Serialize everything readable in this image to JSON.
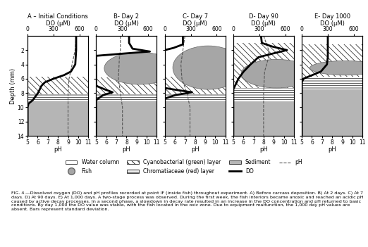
{
  "chart_data": {
    "type": "line",
    "xlabel": "pH",
    "x2label": "DO (µM)",
    "ylabel": "Depth (mm)",
    "xlim": [
      5,
      11
    ],
    "xticks": [
      5,
      6,
      7,
      8,
      9,
      10,
      11
    ],
    "x2lim": [
      0,
      700
    ],
    "x2ticks": [
      0,
      300,
      600
    ],
    "ylim": [
      0,
      14
    ],
    "yticks": [
      2,
      4,
      6,
      8,
      10,
      12,
      14
    ],
    "legend": "upper center",
    "series": [
      {
        "name": "DO",
        "color": "#000000",
        "line_style": "solid",
        "axis": "x2"
      },
      {
        "name": "pH",
        "color": "#555555",
        "line_style": "dashed"
      }
    ],
    "layer_labels": {
      "water": "Water column",
      "fish": "Fish",
      "cyanobacterial": "Cyanobacterial (green) layer",
      "chromatiaceae": "Chromatiaceae (red) layer",
      "sediment": "Sediment"
    },
    "layer_colors": {
      "water": "#ffffff",
      "fish": "#a6a6a6",
      "cyanobacterial": "#ffffff",
      "chromatiaceae": "#ffffff",
      "sediment": "#b5b5b5"
    },
    "panels": [
      {
        "title": "A – Initial Conditions",
        "depth_do": [
          0,
          2,
          4,
          5,
          5.5,
          6,
          6.5,
          7,
          8,
          9,
          9.5,
          10,
          14
        ],
        "do": [
          560,
          560,
          550,
          500,
          420,
          300,
          200,
          160,
          120,
          60,
          10,
          0,
          0
        ],
        "depth_ph": [
          0,
          2,
          4,
          6,
          8,
          10,
          14
        ],
        "ph": [
          9.8,
          9.7,
          9.4,
          9.1,
          9.0,
          9.0,
          9.0
        ],
        "fish": null,
        "cyanobacterial": [
          5.7,
          8.2
        ],
        "chromatiaceae": [
          8.2,
          9.3
        ],
        "sediment": [
          9.3,
          14
        ]
      },
      {
        "title": "B- Day 2",
        "depth_do": [
          0,
          1,
          1.8,
          2.2,
          2.5,
          2.8,
          7,
          7.5,
          7.9,
          8.3,
          9,
          14
        ],
        "do": [
          380,
          380,
          420,
          620,
          300,
          0,
          0,
          100,
          190,
          80,
          0,
          0
        ],
        "depth_ph": [
          0,
          2,
          3,
          6,
          8,
          10,
          14
        ],
        "ph": [
          7.4,
          7.4,
          7.3,
          7.2,
          7.4,
          7.6,
          7.6
        ],
        "fish": [
          2.3,
          6.8
        ],
        "cyanobacterial": [
          5.8,
          8.2
        ],
        "chromatiaceae": [
          8.2,
          9.3
        ],
        "sediment": [
          9.3,
          14
        ]
      },
      {
        "title": "C- Day 7",
        "depth_do": [
          0,
          1.2,
          1.7,
          2.0,
          7.3,
          7.6,
          7.9,
          8.3,
          8.8,
          14
        ],
        "do": [
          210,
          210,
          100,
          0,
          0,
          150,
          315,
          120,
          0,
          0
        ],
        "depth_ph": [
          0,
          2,
          4,
          6,
          8,
          10,
          14
        ],
        "ph": [
          7.0,
          6.8,
          6.6,
          6.7,
          7.2,
          7.5,
          7.5
        ],
        "fish": [
          1.4,
          7.5
        ],
        "cyanobacterial": [
          5.7,
          8.2
        ],
        "chromatiaceae": [
          8.2,
          9.3
        ],
        "sediment": [
          9.3,
          14
        ]
      },
      {
        "title": "D- Day 90",
        "depth_do": [
          0,
          1,
          1.5,
          2,
          2.5,
          3,
          4,
          5,
          6,
          7,
          7.5,
          14
        ],
        "do": [
          320,
          330,
          450,
          620,
          450,
          290,
          200,
          120,
          60,
          20,
          0,
          0
        ],
        "depth_ph": [
          0,
          2,
          3,
          5,
          8,
          14
        ],
        "ph": [
          8.0,
          8.5,
          8.5,
          8.1,
          8.0,
          8.0
        ],
        "fish": [
          3.3,
          7.3
        ],
        "cyanobacterial": [
          1.0,
          7.3
        ],
        "chromatiaceae": [
          7.3,
          9.2
        ],
        "sediment": [
          9.2,
          14
        ]
      },
      {
        "title": "E- Day 1000",
        "depth_do": [
          0,
          3,
          4,
          5,
          5.5,
          6,
          6.5,
          14
        ],
        "do": [
          300,
          300,
          290,
          220,
          120,
          20,
          0,
          0
        ],
        "depth_ph": null,
        "ph": null,
        "fish": [
          3.5,
          5.5
        ],
        "cyanobacterial": [
          1.2,
          5.7
        ],
        "chromatiaceae": [
          5.7,
          7.5
        ],
        "sediment": [
          7.5,
          14
        ]
      }
    ],
    "caption": "FIG. 4.—Dissolved oxygen (DO) and pH profiles recorded at point IF (inside fish) throughout experiment. A) Before carcass deposition. B) At 2 days. C) At 7 days. D) At 90 days. E) At 1,000 days. A two-stage process was observed. During the first week, the fish interiors became anoxic and reached an acidic pH caused by active decay processes. In a second phase, a slowdown in decay rate resulted in an increase in the DO concentration and pH returned to basic conditions. By day 1,000 the DO value was stable, with the fish located in the oxic zone. Due to equipment malfunction, the 1,000 day pH values are absent. Bars represent standard deviation."
  }
}
